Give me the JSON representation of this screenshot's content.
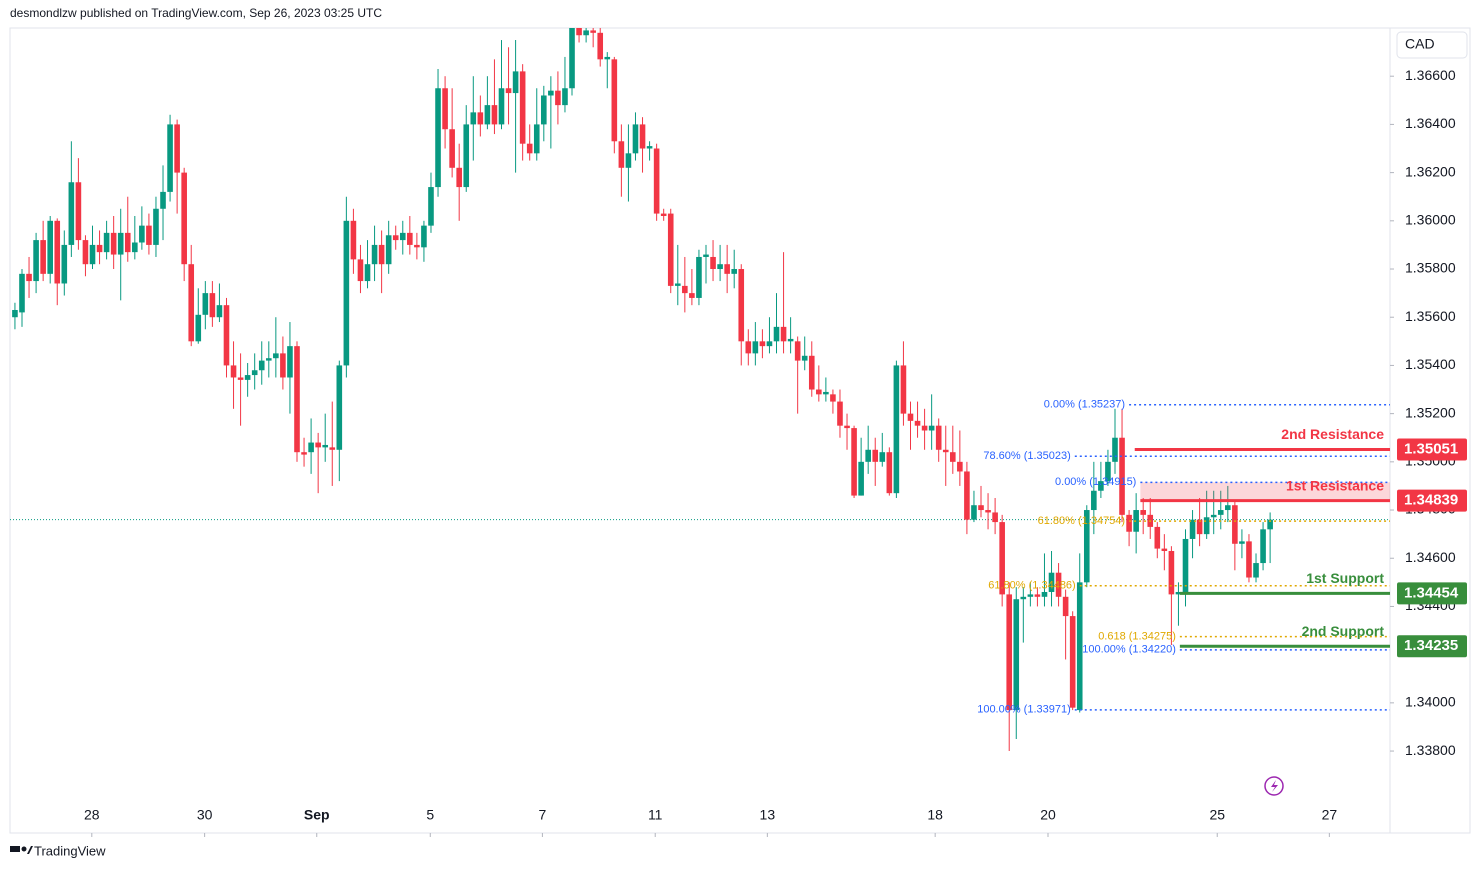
{
  "header": {
    "byline": "desmondlzw published on TradingView.com, Sep 26, 2023 03:25 UTC"
  },
  "footer": {
    "brand": "TradingView"
  },
  "chart_data": {
    "type": "candlestick",
    "currency": "CAD",
    "up_color": "#089981",
    "down_color": "#f23645",
    "xlim": [
      -0.7,
      195
    ],
    "xticks": [
      {
        "value": 10.9,
        "label": "28"
      },
      {
        "value": 26.9,
        "label": "30"
      },
      {
        "value": 42.8,
        "label": "Sep"
      },
      {
        "value": 58.9,
        "label": "5"
      },
      {
        "value": 74.8,
        "label": "7"
      },
      {
        "value": 90.8,
        "label": "11"
      },
      {
        "value": 106.7,
        "label": "13"
      },
      {
        "value": 130.5,
        "label": "18"
      },
      {
        "value": 146.5,
        "label": "20"
      },
      {
        "value": 170.5,
        "label": "25"
      },
      {
        "value": 186.4,
        "label": "27"
      }
    ],
    "ylim": [
      1.3346,
      1.368
    ],
    "yticks": [
      {
        "value": 1.338,
        "label": "1.33800"
      },
      {
        "value": 1.34,
        "label": "1.34000"
      },
      {
        "value": 1.344,
        "label": "1.34400"
      },
      {
        "value": 1.346,
        "label": "1.34600"
      },
      {
        "value": 1.348,
        "label": "1.34800"
      },
      {
        "value": 1.35,
        "label": "1.35000"
      },
      {
        "value": 1.352,
        "label": "1.35200"
      },
      {
        "value": 1.354,
        "label": "1.35400"
      },
      {
        "value": 1.356,
        "label": "1.35600"
      },
      {
        "value": 1.358,
        "label": "1.35800"
      },
      {
        "value": 1.36,
        "label": "1.36000"
      },
      {
        "value": 1.362,
        "label": "1.36200"
      },
      {
        "value": 1.364,
        "label": "1.36400"
      },
      {
        "value": 1.366,
        "label": "1.36600"
      }
    ],
    "candles": [
      [
        1.356,
        1.3566,
        1.3555,
        1.3563
      ],
      [
        1.3562,
        1.358,
        1.3556,
        1.3578
      ],
      [
        1.3578,
        1.3585,
        1.3568,
        1.3575
      ],
      [
        1.3575,
        1.3595,
        1.357,
        1.3592
      ],
      [
        1.3592,
        1.36,
        1.3575,
        1.3578
      ],
      [
        1.3578,
        1.3602,
        1.3574,
        1.36
      ],
      [
        1.36,
        1.3601,
        1.3565,
        1.3574
      ],
      [
        1.3574,
        1.3596,
        1.3569,
        1.359
      ],
      [
        1.359,
        1.3633,
        1.3585,
        1.3616
      ],
      [
        1.3616,
        1.3626,
        1.3588,
        1.3592
      ],
      [
        1.3592,
        1.3594,
        1.3577,
        1.3582
      ],
      [
        1.3582,
        1.3598,
        1.358,
        1.359
      ],
      [
        1.359,
        1.3596,
        1.3582,
        1.3587
      ],
      [
        1.3587,
        1.36,
        1.3584,
        1.3595
      ],
      [
        1.3595,
        1.3602,
        1.358,
        1.3586
      ],
      [
        1.3586,
        1.3605,
        1.3567,
        1.3595
      ],
      [
        1.3595,
        1.361,
        1.3583,
        1.3587
      ],
      [
        1.3587,
        1.3602,
        1.3584,
        1.3591
      ],
      [
        1.3591,
        1.3606,
        1.3588,
        1.3598
      ],
      [
        1.3598,
        1.3603,
        1.3586,
        1.359
      ],
      [
        1.359,
        1.361,
        1.3585,
        1.3605
      ],
      [
        1.3605,
        1.3623,
        1.3592,
        1.3612
      ],
      [
        1.3612,
        1.3644,
        1.3608,
        1.364
      ],
      [
        1.364,
        1.3642,
        1.3603,
        1.362
      ],
      [
        1.362,
        1.3622,
        1.3575,
        1.3582
      ],
      [
        1.3582,
        1.359,
        1.3548,
        1.355
      ],
      [
        1.355,
        1.3572,
        1.3549,
        1.3561
      ],
      [
        1.3561,
        1.3575,
        1.3555,
        1.357
      ],
      [
        1.357,
        1.3575,
        1.3556,
        1.356
      ],
      [
        1.356,
        1.3574,
        1.3558,
        1.3565
      ],
      [
        1.3565,
        1.3568,
        1.3535,
        1.354
      ],
      [
        1.354,
        1.355,
        1.3522,
        1.3535
      ],
      [
        1.3535,
        1.3545,
        1.3515,
        1.3534
      ],
      [
        1.3534,
        1.3541,
        1.3527,
        1.3536
      ],
      [
        1.3536,
        1.3545,
        1.353,
        1.3538
      ],
      [
        1.3538,
        1.355,
        1.3532,
        1.3542
      ],
      [
        1.3542,
        1.355,
        1.3535,
        1.3543
      ],
      [
        1.3543,
        1.356,
        1.3535,
        1.3545
      ],
      [
        1.3545,
        1.3552,
        1.353,
        1.3535
      ],
      [
        1.3535,
        1.3558,
        1.352,
        1.3548
      ],
      [
        1.3548,
        1.355,
        1.35,
        1.3504
      ],
      [
        1.3504,
        1.351,
        1.3498,
        1.3503
      ],
      [
        1.3504,
        1.3518,
        1.3495,
        1.3508
      ],
      [
        1.3508,
        1.3512,
        1.3487,
        1.3506
      ],
      [
        1.3506,
        1.352,
        1.35,
        1.3507
      ],
      [
        1.3506,
        1.3525,
        1.349,
        1.3505
      ],
      [
        1.3505,
        1.3542,
        1.3492,
        1.354
      ],
      [
        1.354,
        1.361,
        1.3535,
        1.36
      ],
      [
        1.36,
        1.3605,
        1.3578,
        1.3584
      ],
      [
        1.3584,
        1.359,
        1.357,
        1.3575
      ],
      [
        1.3575,
        1.3592,
        1.3572,
        1.3582
      ],
      [
        1.3582,
        1.3598,
        1.3575,
        1.359
      ],
      [
        1.359,
        1.3596,
        1.357,
        1.3582
      ],
      [
        1.3582,
        1.36,
        1.3578,
        1.3594
      ],
      [
        1.3594,
        1.3598,
        1.3588,
        1.3592
      ],
      [
        1.3592,
        1.36,
        1.3586,
        1.3595
      ],
      [
        1.3595,
        1.3602,
        1.3586,
        1.359
      ],
      [
        1.359,
        1.3595,
        1.3584,
        1.3589
      ],
      [
        1.3589,
        1.36,
        1.3583,
        1.3598
      ],
      [
        1.3598,
        1.362,
        1.3595,
        1.3614
      ],
      [
        1.3614,
        1.3663,
        1.361,
        1.3655
      ],
      [
        1.3655,
        1.366,
        1.363,
        1.3638
      ],
      [
        1.3638,
        1.3655,
        1.3618,
        1.3622
      ],
      [
        1.3622,
        1.3632,
        1.36,
        1.3614
      ],
      [
        1.3614,
        1.3648,
        1.3612,
        1.364
      ],
      [
        1.364,
        1.366,
        1.3625,
        1.3645
      ],
      [
        1.3645,
        1.3652,
        1.3635,
        1.364
      ],
      [
        1.364,
        1.366,
        1.3638,
        1.3648
      ],
      [
        1.3648,
        1.3667,
        1.3636,
        1.364
      ],
      [
        1.364,
        1.3675,
        1.3638,
        1.3655
      ],
      [
        1.3655,
        1.3672,
        1.364,
        1.3653
      ],
      [
        1.3653,
        1.3675,
        1.362,
        1.3662
      ],
      [
        1.3662,
        1.3665,
        1.3625,
        1.3632
      ],
      [
        1.3632,
        1.364,
        1.3625,
        1.3628
      ],
      [
        1.3628,
        1.3655,
        1.3625,
        1.364
      ],
      [
        1.364,
        1.3656,
        1.3633,
        1.3652
      ],
      [
        1.3652,
        1.366,
        1.363,
        1.3654
      ],
      [
        1.3654,
        1.3662,
        1.364,
        1.3648
      ],
      [
        1.3648,
        1.3668,
        1.3645,
        1.3655
      ],
      [
        1.3655,
        1.3685,
        1.3652,
        1.368
      ],
      [
        1.368,
        1.3682,
        1.3674,
        1.3677
      ],
      [
        1.3677,
        1.3683,
        1.3674,
        1.3679
      ],
      [
        1.3679,
        1.3682,
        1.3672,
        1.3678
      ],
      [
        1.3678,
        1.368,
        1.3664,
        1.3667
      ],
      [
        1.3667,
        1.367,
        1.3655,
        1.3668
      ],
      [
        1.3667,
        1.3668,
        1.3628,
        1.3633
      ],
      [
        1.3633,
        1.364,
        1.361,
        1.3622
      ],
      [
        1.3622,
        1.364,
        1.3608,
        1.3628
      ],
      [
        1.3628,
        1.3645,
        1.3625,
        1.364
      ],
      [
        1.364,
        1.3643,
        1.362,
        1.363
      ],
      [
        1.363,
        1.3633,
        1.3625,
        1.3631
      ],
      [
        1.363,
        1.3632,
        1.36,
        1.3603
      ],
      [
        1.3603,
        1.3605,
        1.36,
        1.3602
      ],
      [
        1.3603,
        1.3605,
        1.357,
        1.3573
      ],
      [
        1.3573,
        1.359,
        1.3565,
        1.3574
      ],
      [
        1.3573,
        1.3585,
        1.3562,
        1.357
      ],
      [
        1.357,
        1.358,
        1.3565,
        1.3568
      ],
      [
        1.3568,
        1.3588,
        1.3565,
        1.3585
      ],
      [
        1.3585,
        1.359,
        1.3574,
        1.3586
      ],
      [
        1.3585,
        1.3592,
        1.3575,
        1.358
      ],
      [
        1.358,
        1.359,
        1.3575,
        1.3582
      ],
      [
        1.3582,
        1.359,
        1.357,
        1.3578
      ],
      [
        1.3578,
        1.3588,
        1.3572,
        1.358
      ],
      [
        1.358,
        1.3582,
        1.354,
        1.355
      ],
      [
        1.355,
        1.3555,
        1.354,
        1.3545
      ],
      [
        1.3545,
        1.3558,
        1.354,
        1.355
      ],
      [
        1.355,
        1.3555,
        1.3543,
        1.3548
      ],
      [
        1.3548,
        1.356,
        1.3545,
        1.355
      ],
      [
        1.355,
        1.357,
        1.3545,
        1.3556
      ],
      [
        1.3556,
        1.3587,
        1.3545,
        1.355
      ],
      [
        1.355,
        1.356,
        1.3545,
        1.3551
      ],
      [
        1.355,
        1.3552,
        1.352,
        1.3542
      ],
      [
        1.3542,
        1.3552,
        1.3538,
        1.3544
      ],
      [
        1.3544,
        1.355,
        1.3527,
        1.353
      ],
      [
        1.353,
        1.354,
        1.3525,
        1.3528
      ],
      [
        1.3528,
        1.3535,
        1.3525,
        1.3529
      ],
      [
        1.3528,
        1.353,
        1.352,
        1.3525
      ],
      [
        1.3525,
        1.353,
        1.351,
        1.3515
      ],
      [
        1.3515,
        1.352,
        1.3505,
        1.3514
      ],
      [
        1.3514,
        1.3515,
        1.3485,
        1.3486
      ],
      [
        1.3486,
        1.351,
        1.3486,
        1.35
      ],
      [
        1.35,
        1.3515,
        1.3495,
        1.3505
      ],
      [
        1.3505,
        1.351,
        1.349,
        1.35
      ],
      [
        1.35,
        1.3512,
        1.3498,
        1.3504
      ],
      [
        1.3504,
        1.3506,
        1.3486,
        1.3487
      ],
      [
        1.3487,
        1.3542,
        1.3485,
        1.354
      ],
      [
        1.354,
        1.355,
        1.3515,
        1.352
      ],
      [
        1.352,
        1.3525,
        1.3505,
        1.3517
      ],
      [
        1.3517,
        1.3525,
        1.351,
        1.3515
      ],
      [
        1.3515,
        1.3522,
        1.3505,
        1.3513
      ],
      [
        1.3513,
        1.3528,
        1.3505,
        1.3515
      ],
      [
        1.3515,
        1.3518,
        1.35,
        1.3505
      ],
      [
        1.3505,
        1.3515,
        1.349,
        1.3504
      ],
      [
        1.3504,
        1.3515,
        1.3495,
        1.35
      ],
      [
        1.35,
        1.3513,
        1.349,
        1.3496
      ],
      [
        1.3496,
        1.35,
        1.347,
        1.3476
      ],
      [
        1.3476,
        1.3488,
        1.3475,
        1.3482
      ],
      [
        1.3482,
        1.349,
        1.3477,
        1.348
      ],
      [
        1.348,
        1.3487,
        1.3472,
        1.3479
      ],
      [
        1.3479,
        1.3485,
        1.347,
        1.3475
      ],
      [
        1.3475,
        1.3478,
        1.344,
        1.3445
      ],
      [
        1.3445,
        1.345,
        1.338,
        1.3397
      ],
      [
        1.3397,
        1.3448,
        1.3385,
        1.3443
      ],
      [
        1.3443,
        1.3448,
        1.3425,
        1.3444
      ],
      [
        1.3444,
        1.345,
        1.344,
        1.3445
      ],
      [
        1.3445,
        1.3448,
        1.344,
        1.3444
      ],
      [
        1.3444,
        1.3462,
        1.344,
        1.3446
      ],
      [
        1.3446,
        1.3463,
        1.344,
        1.3454
      ],
      [
        1.3454,
        1.3458,
        1.344,
        1.3444
      ],
      [
        1.3444,
        1.3447,
        1.3418,
        1.3436
      ],
      [
        1.3436,
        1.3438,
        1.3397,
        1.3398
      ],
      [
        1.3397,
        1.3462,
        1.3396,
        1.345
      ],
      [
        1.345,
        1.3482,
        1.3448,
        1.348
      ],
      [
        1.348,
        1.35,
        1.347,
        1.3488
      ],
      [
        1.3488,
        1.35,
        1.3485,
        1.3492
      ],
      [
        1.3492,
        1.3505,
        1.349,
        1.35
      ],
      [
        1.35,
        1.3522,
        1.3495,
        1.351
      ],
      [
        1.351,
        1.3522,
        1.3475,
        1.3478
      ],
      [
        1.3478,
        1.348,
        1.3465,
        1.3471
      ],
      [
        1.3471,
        1.3487,
        1.3462,
        1.348
      ],
      [
        1.348,
        1.3485,
        1.347,
        1.3478
      ],
      [
        1.3478,
        1.3485,
        1.3468,
        1.3473
      ],
      [
        1.3473,
        1.3475,
        1.346,
        1.3464
      ],
      [
        1.3464,
        1.347,
        1.3455,
        1.3463
      ],
      [
        1.3463,
        1.3465,
        1.3424,
        1.3445
      ],
      [
        1.3445,
        1.345,
        1.3432,
        1.3446
      ],
      [
        1.3445,
        1.3472,
        1.344,
        1.3468
      ],
      [
        1.3468,
        1.348,
        1.346,
        1.3476
      ],
      [
        1.3476,
        1.3485,
        1.3465,
        1.347
      ],
      [
        1.347,
        1.3488,
        1.3468,
        1.3477
      ],
      [
        1.3477,
        1.3488,
        1.347,
        1.3478
      ],
      [
        1.3478,
        1.3488,
        1.3472,
        1.348
      ],
      [
        1.348,
        1.349,
        1.3475,
        1.3482
      ],
      [
        1.3482,
        1.3484,
        1.3455,
        1.3466
      ],
      [
        1.3466,
        1.3472,
        1.346,
        1.3467
      ],
      [
        1.3467,
        1.347,
        1.345,
        1.3452
      ],
      [
        1.3452,
        1.3462,
        1.345,
        1.3458
      ],
      [
        1.3458,
        1.3475,
        1.3455,
        1.3472
      ],
      [
        1.3472,
        1.3479,
        1.3458,
        1.3476
      ]
    ],
    "fib_levels": [
      {
        "label": "0.00% (1.35237)",
        "value": 1.35237,
        "from": 158,
        "color": "#2962ff"
      },
      {
        "label": "78.60% (1.35023)",
        "value": 1.35023,
        "from": 150.3,
        "color": "#2962ff"
      },
      {
        "label": "0.00% (1.34915)",
        "value": 1.34915,
        "from": 159.6,
        "color": "#2962ff"
      },
      {
        "label": "61.80% (1.34754)",
        "value": 1.34754,
        "from": 158,
        "color": "#e0a800"
      },
      {
        "label": "61.80% (1.34486)",
        "value": 1.34486,
        "from": 151,
        "color": "#e0a800"
      },
      {
        "label": "0.618 (1.34275)",
        "value": 1.34275,
        "from": 165.2,
        "color": "#e0a800"
      },
      {
        "label": "100.00% (1.34220)",
        "value": 1.3422,
        "from": 165.2,
        "color": "#2962ff"
      },
      {
        "label": "100.00% (1.33971)",
        "value": 1.33971,
        "from": 150.3,
        "color": "#2962ff"
      }
    ],
    "levels": [
      {
        "label": "2nd Resistance",
        "value": 1.35051,
        "price_label": "1.35051",
        "from": 158.8,
        "color": "#f23645"
      },
      {
        "label": "1st Resistance",
        "value": 1.34839,
        "price_label": "1.34839",
        "from": 159.6,
        "color": "#f23645"
      },
      {
        "label": "1st Support",
        "value": 1.34454,
        "price_label": "1.34454",
        "from": 165.2,
        "color": "#388e3c"
      },
      {
        "label": "2nd Support",
        "value": 1.34235,
        "price_label": "1.34235",
        "from": 165.2,
        "color": "#388e3c"
      }
    ]
  }
}
